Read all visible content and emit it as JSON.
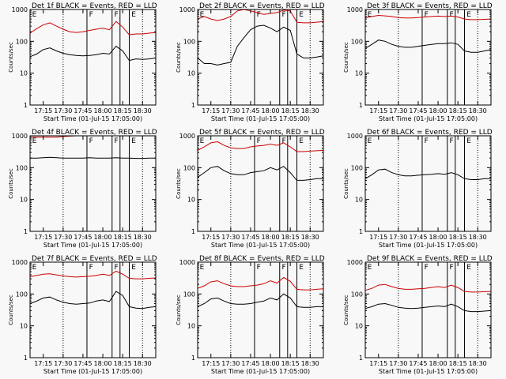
{
  "figure": {
    "ylabel": "Counts/sec",
    "xlabel": "Start Time (01-Jul-15 17:05:00)",
    "x_ticks": [
      "17:15",
      "17:30",
      "17:45",
      "18:00",
      "18:15",
      "18:30"
    ],
    "y_ticks": [
      "1",
      "10",
      "100",
      "1000"
    ],
    "colors": {
      "events": "#000000",
      "lld": "#cc0000",
      "axes": "#000000"
    }
  },
  "chart_data": [
    {
      "type": "line",
      "title": "Det 1f BLACK = Events, RED = LLD",
      "xlabel": "Start Time (01-Jul-15 17:05:00)",
      "ylabel": "Counts/sec",
      "xlim": [
        "17:05",
        "18:40"
      ],
      "ylim": [
        1,
        1000
      ],
      "yscale": "log",
      "x": [
        "17:05",
        "17:10",
        "17:15",
        "17:20",
        "17:25",
        "17:30",
        "17:35",
        "17:40",
        "17:45",
        "17:50",
        "17:55",
        "18:00",
        "18:05",
        "18:10",
        "18:15",
        "18:20",
        "18:25",
        "18:30",
        "18:35",
        "18:40"
      ],
      "series": [
        {
          "name": "Events",
          "color": "#000000",
          "values": [
            33,
            40,
            55,
            62,
            50,
            42,
            38,
            36,
            35,
            36,
            38,
            42,
            40,
            70,
            50,
            25,
            28,
            27,
            28,
            30
          ]
        },
        {
          "name": "LLD",
          "color": "#cc0000",
          "values": [
            180,
            250,
            330,
            380,
            300,
            240,
            200,
            190,
            200,
            220,
            240,
            260,
            230,
            420,
            280,
            160,
            170,
            170,
            180,
            190
          ]
        }
      ],
      "saa_markers": [
        "18:07",
        "18:13"
      ],
      "annotations": [
        "E",
        "F",
        "F",
        "E"
      ]
    },
    {
      "type": "line",
      "title": "Det 2f BLACK = Events, RED = LLD",
      "xlabel": "Start Time (01-Jul-15 17:05:00)",
      "ylabel": "Counts/sec",
      "xlim": [
        "17:05",
        "18:40"
      ],
      "ylim": [
        1,
        1000
      ],
      "yscale": "log",
      "x": [
        "17:05",
        "17:10",
        "17:15",
        "17:20",
        "17:25",
        "17:30",
        "17:35",
        "17:40",
        "17:45",
        "17:50",
        "17:55",
        "18:00",
        "18:05",
        "18:10",
        "18:15",
        "18:20",
        "18:25",
        "18:30",
        "18:35",
        "18:40"
      ],
      "series": [
        {
          "name": "Events",
          "color": "#000000",
          "values": [
            30,
            20,
            20,
            18,
            20,
            22,
            70,
            130,
            230,
            300,
            320,
            260,
            200,
            280,
            220,
            40,
            30,
            30,
            32,
            35
          ]
        },
        {
          "name": "LLD",
          "color": "#cc0000",
          "values": [
            500,
            600,
            500,
            450,
            500,
            600,
            900,
            1000,
            900,
            800,
            700,
            750,
            800,
            950,
            900,
            400,
            380,
            380,
            400,
            420
          ]
        }
      ],
      "saa_markers": [
        "18:07",
        "18:13"
      ],
      "annotations": [
        "E",
        "F",
        "F",
        "E"
      ]
    },
    {
      "type": "line",
      "title": "Det 3f BLACK = Events, RED = LLD",
      "xlabel": "Start Time (01-Jul-15 17:05:00)",
      "ylabel": "Counts/sec",
      "xlim": [
        "17:05",
        "18:40"
      ],
      "ylim": [
        1,
        1000
      ],
      "yscale": "log",
      "x": [
        "17:05",
        "17:10",
        "17:15",
        "17:20",
        "17:25",
        "17:30",
        "17:35",
        "17:40",
        "17:45",
        "17:50",
        "17:55",
        "18:00",
        "18:05",
        "18:10",
        "18:15",
        "18:20",
        "18:25",
        "18:30",
        "18:35",
        "18:40"
      ],
      "series": [
        {
          "name": "Events",
          "color": "#000000",
          "values": [
            60,
            80,
            110,
            100,
            80,
            70,
            65,
            65,
            70,
            75,
            80,
            85,
            85,
            90,
            80,
            50,
            45,
            45,
            50,
            55
          ]
        },
        {
          "name": "LLD",
          "color": "#cc0000",
          "values": [
            550,
            600,
            650,
            630,
            600,
            560,
            540,
            540,
            560,
            580,
            600,
            620,
            600,
            620,
            580,
            500,
            480,
            480,
            490,
            500
          ]
        }
      ],
      "saa_markers": [
        "18:07",
        "18:13"
      ],
      "annotations": [
        "E",
        "F",
        "F",
        "E"
      ]
    },
    {
      "type": "line",
      "title": "Det 4f BLACK = Events, RED = LLD",
      "xlabel": "Start Time (01-Jul-15 17:05:00)",
      "ylabel": "Counts/sec",
      "xlim": [
        "17:05",
        "18:40"
      ],
      "ylim": [
        1,
        1000
      ],
      "yscale": "log",
      "x": [
        "17:05",
        "17:10",
        "17:15",
        "17:20",
        "17:25",
        "17:30",
        "17:35",
        "17:40",
        "17:45",
        "17:50",
        "17:55",
        "18:00",
        "18:05",
        "18:10",
        "18:15",
        "18:20",
        "18:25",
        "18:30",
        "18:35",
        "18:40"
      ],
      "series": [
        {
          "name": "Events",
          "color": "#000000",
          "values": [
            200,
            200,
            205,
            210,
            205,
            200,
            200,
            200,
            200,
            205,
            200,
            200,
            200,
            205,
            200,
            200,
            195,
            195,
            200,
            200
          ]
        },
        {
          "name": "LLD",
          "color": "#cc0000",
          "values": [
            900,
            900,
            900,
            900,
            900,
            950,
            980,
            1000,
            1000,
            1000,
            1000,
            1000,
            1000,
            1000,
            1000,
            1000,
            1000,
            1000,
            1000,
            1000
          ]
        }
      ],
      "saa_markers": [
        "18:07",
        "18:13"
      ],
      "annotations": [
        "E",
        "F",
        "F",
        "E"
      ]
    },
    {
      "type": "line",
      "title": "Det 5f BLACK = Events, RED = LLD",
      "xlabel": "Start Time (01-Jul-15 17:05:00)",
      "ylabel": "Counts/sec",
      "xlim": [
        "17:05",
        "18:40"
      ],
      "ylim": [
        1,
        1000
      ],
      "yscale": "log",
      "x": [
        "17:05",
        "17:10",
        "17:15",
        "17:20",
        "17:25",
        "17:30",
        "17:35",
        "17:40",
        "17:45",
        "17:50",
        "17:55",
        "18:00",
        "18:05",
        "18:10",
        "18:15",
        "18:20",
        "18:25",
        "18:30",
        "18:35",
        "18:40"
      ],
      "series": [
        {
          "name": "Events",
          "color": "#000000",
          "values": [
            50,
            70,
            100,
            110,
            80,
            65,
            60,
            60,
            70,
            75,
            80,
            100,
            85,
            110,
            70,
            40,
            40,
            42,
            45,
            45
          ]
        },
        {
          "name": "LLD",
          "color": "#cc0000",
          "values": [
            350,
            450,
            600,
            650,
            500,
            420,
            400,
            400,
            450,
            480,
            500,
            550,
            500,
            600,
            450,
            320,
            320,
            330,
            340,
            350
          ]
        }
      ],
      "saa_markers": [
        "18:07",
        "18:13"
      ],
      "annotations": [
        "E",
        "F",
        "F",
        "E"
      ]
    },
    {
      "type": "line",
      "title": "Det 6f BLACK = Events, RED = LLD",
      "xlabel": "Start Time (01-Jul-15 17:05:00)",
      "ylabel": "Counts/sec",
      "xlim": [
        "17:05",
        "18:40"
      ],
      "ylim": [
        1,
        1000
      ],
      "yscale": "log",
      "x": [
        "17:05",
        "17:10",
        "17:15",
        "17:20",
        "17:25",
        "17:30",
        "17:35",
        "17:40",
        "17:45",
        "17:50",
        "17:55",
        "18:00",
        "18:05",
        "18:10",
        "18:15",
        "18:20",
        "18:25",
        "18:30",
        "18:35",
        "18:40"
      ],
      "series": [
        {
          "name": "Events",
          "color": "#000000",
          "values": [
            45,
            60,
            85,
            90,
            70,
            60,
            55,
            55,
            58,
            60,
            62,
            65,
            62,
            70,
            60,
            45,
            42,
            42,
            45,
            45
          ]
        }
      ],
      "saa_markers": [
        "18:07",
        "18:13"
      ],
      "annotations": [
        "E",
        "F",
        "F",
        "E"
      ]
    },
    {
      "type": "line",
      "title": "Det 7f BLACK = Events, RED = LLD",
      "xlabel": "Start Time (01-Jul-15 17:05:00)",
      "ylabel": "Counts/sec",
      "xlim": [
        "17:05",
        "18:40"
      ],
      "ylim": [
        1,
        1000
      ],
      "yscale": "log",
      "x": [
        "17:05",
        "17:10",
        "17:15",
        "17:20",
        "17:25",
        "17:30",
        "17:35",
        "17:40",
        "17:45",
        "17:50",
        "17:55",
        "18:00",
        "18:05",
        "18:10",
        "18:15",
        "18:20",
        "18:25",
        "18:30",
        "18:35",
        "18:40"
      ],
      "series": [
        {
          "name": "Events",
          "color": "#000000",
          "values": [
            50,
            60,
            75,
            80,
            65,
            55,
            50,
            48,
            50,
            52,
            60,
            65,
            58,
            120,
            90,
            40,
            36,
            35,
            38,
            40
          ]
        },
        {
          "name": "LLD",
          "color": "#cc0000",
          "values": [
            350,
            380,
            420,
            430,
            400,
            370,
            350,
            340,
            350,
            360,
            380,
            420,
            380,
            520,
            420,
            310,
            300,
            300,
            310,
            320
          ]
        }
      ],
      "saa_markers": [
        "18:07",
        "18:13"
      ],
      "annotations": [
        "E",
        "F",
        "F",
        "E"
      ]
    },
    {
      "type": "line",
      "title": "Det 8f BLACK = Events, RED = LLD",
      "xlabel": "Start Time (01-Jul-15 17:05:00)",
      "ylabel": "Counts/sec",
      "xlim": [
        "17:05",
        "18:40"
      ],
      "ylim": [
        1,
        1000
      ],
      "yscale": "log",
      "x": [
        "17:05",
        "17:10",
        "17:15",
        "17:20",
        "17:25",
        "17:30",
        "17:35",
        "17:40",
        "17:45",
        "17:50",
        "17:55",
        "18:00",
        "18:05",
        "18:10",
        "18:15",
        "18:20",
        "18:25",
        "18:30",
        "18:35",
        "18:40"
      ],
      "series": [
        {
          "name": "Events",
          "color": "#000000",
          "values": [
            40,
            50,
            70,
            75,
            60,
            50,
            48,
            48,
            50,
            55,
            60,
            75,
            65,
            100,
            75,
            40,
            38,
            38,
            40,
            40
          ]
        },
        {
          "name": "LLD",
          "color": "#cc0000",
          "values": [
            150,
            180,
            240,
            260,
            210,
            180,
            170,
            170,
            180,
            190,
            210,
            260,
            220,
            330,
            250,
            140,
            135,
            135,
            140,
            145
          ]
        }
      ],
      "saa_markers": [
        "18:07",
        "18:13"
      ],
      "annotations": [
        "E",
        "F",
        "F",
        "E"
      ]
    },
    {
      "type": "line",
      "title": "Det 9f BLACK = Events, RED = LLD",
      "xlabel": "Start Time (01-Jul-15 17:05:00)",
      "ylabel": "Counts/sec",
      "xlim": [
        "17:05",
        "18:40"
      ],
      "ylim": [
        1,
        1000
      ],
      "yscale": "log",
      "x": [
        "17:05",
        "17:10",
        "17:15",
        "17:20",
        "17:25",
        "17:30",
        "17:35",
        "17:40",
        "17:45",
        "17:50",
        "17:55",
        "18:00",
        "18:05",
        "18:10",
        "18:15",
        "18:20",
        "18:25",
        "18:30",
        "18:35",
        "18:40"
      ],
      "series": [
        {
          "name": "Events",
          "color": "#000000",
          "values": [
            35,
            40,
            48,
            50,
            44,
            38,
            36,
            35,
            36,
            38,
            40,
            42,
            40,
            48,
            40,
            30,
            28,
            28,
            29,
            30
          ]
        },
        {
          "name": "LLD",
          "color": "#cc0000",
          "values": [
            130,
            150,
            190,
            200,
            170,
            150,
            140,
            140,
            145,
            150,
            160,
            170,
            160,
            190,
            160,
            120,
            115,
            115,
            118,
            120
          ]
        }
      ],
      "saa_markers": [
        "18:07",
        "18:13"
      ],
      "annotations": [
        "E",
        "F",
        "F",
        "E"
      ]
    }
  ]
}
